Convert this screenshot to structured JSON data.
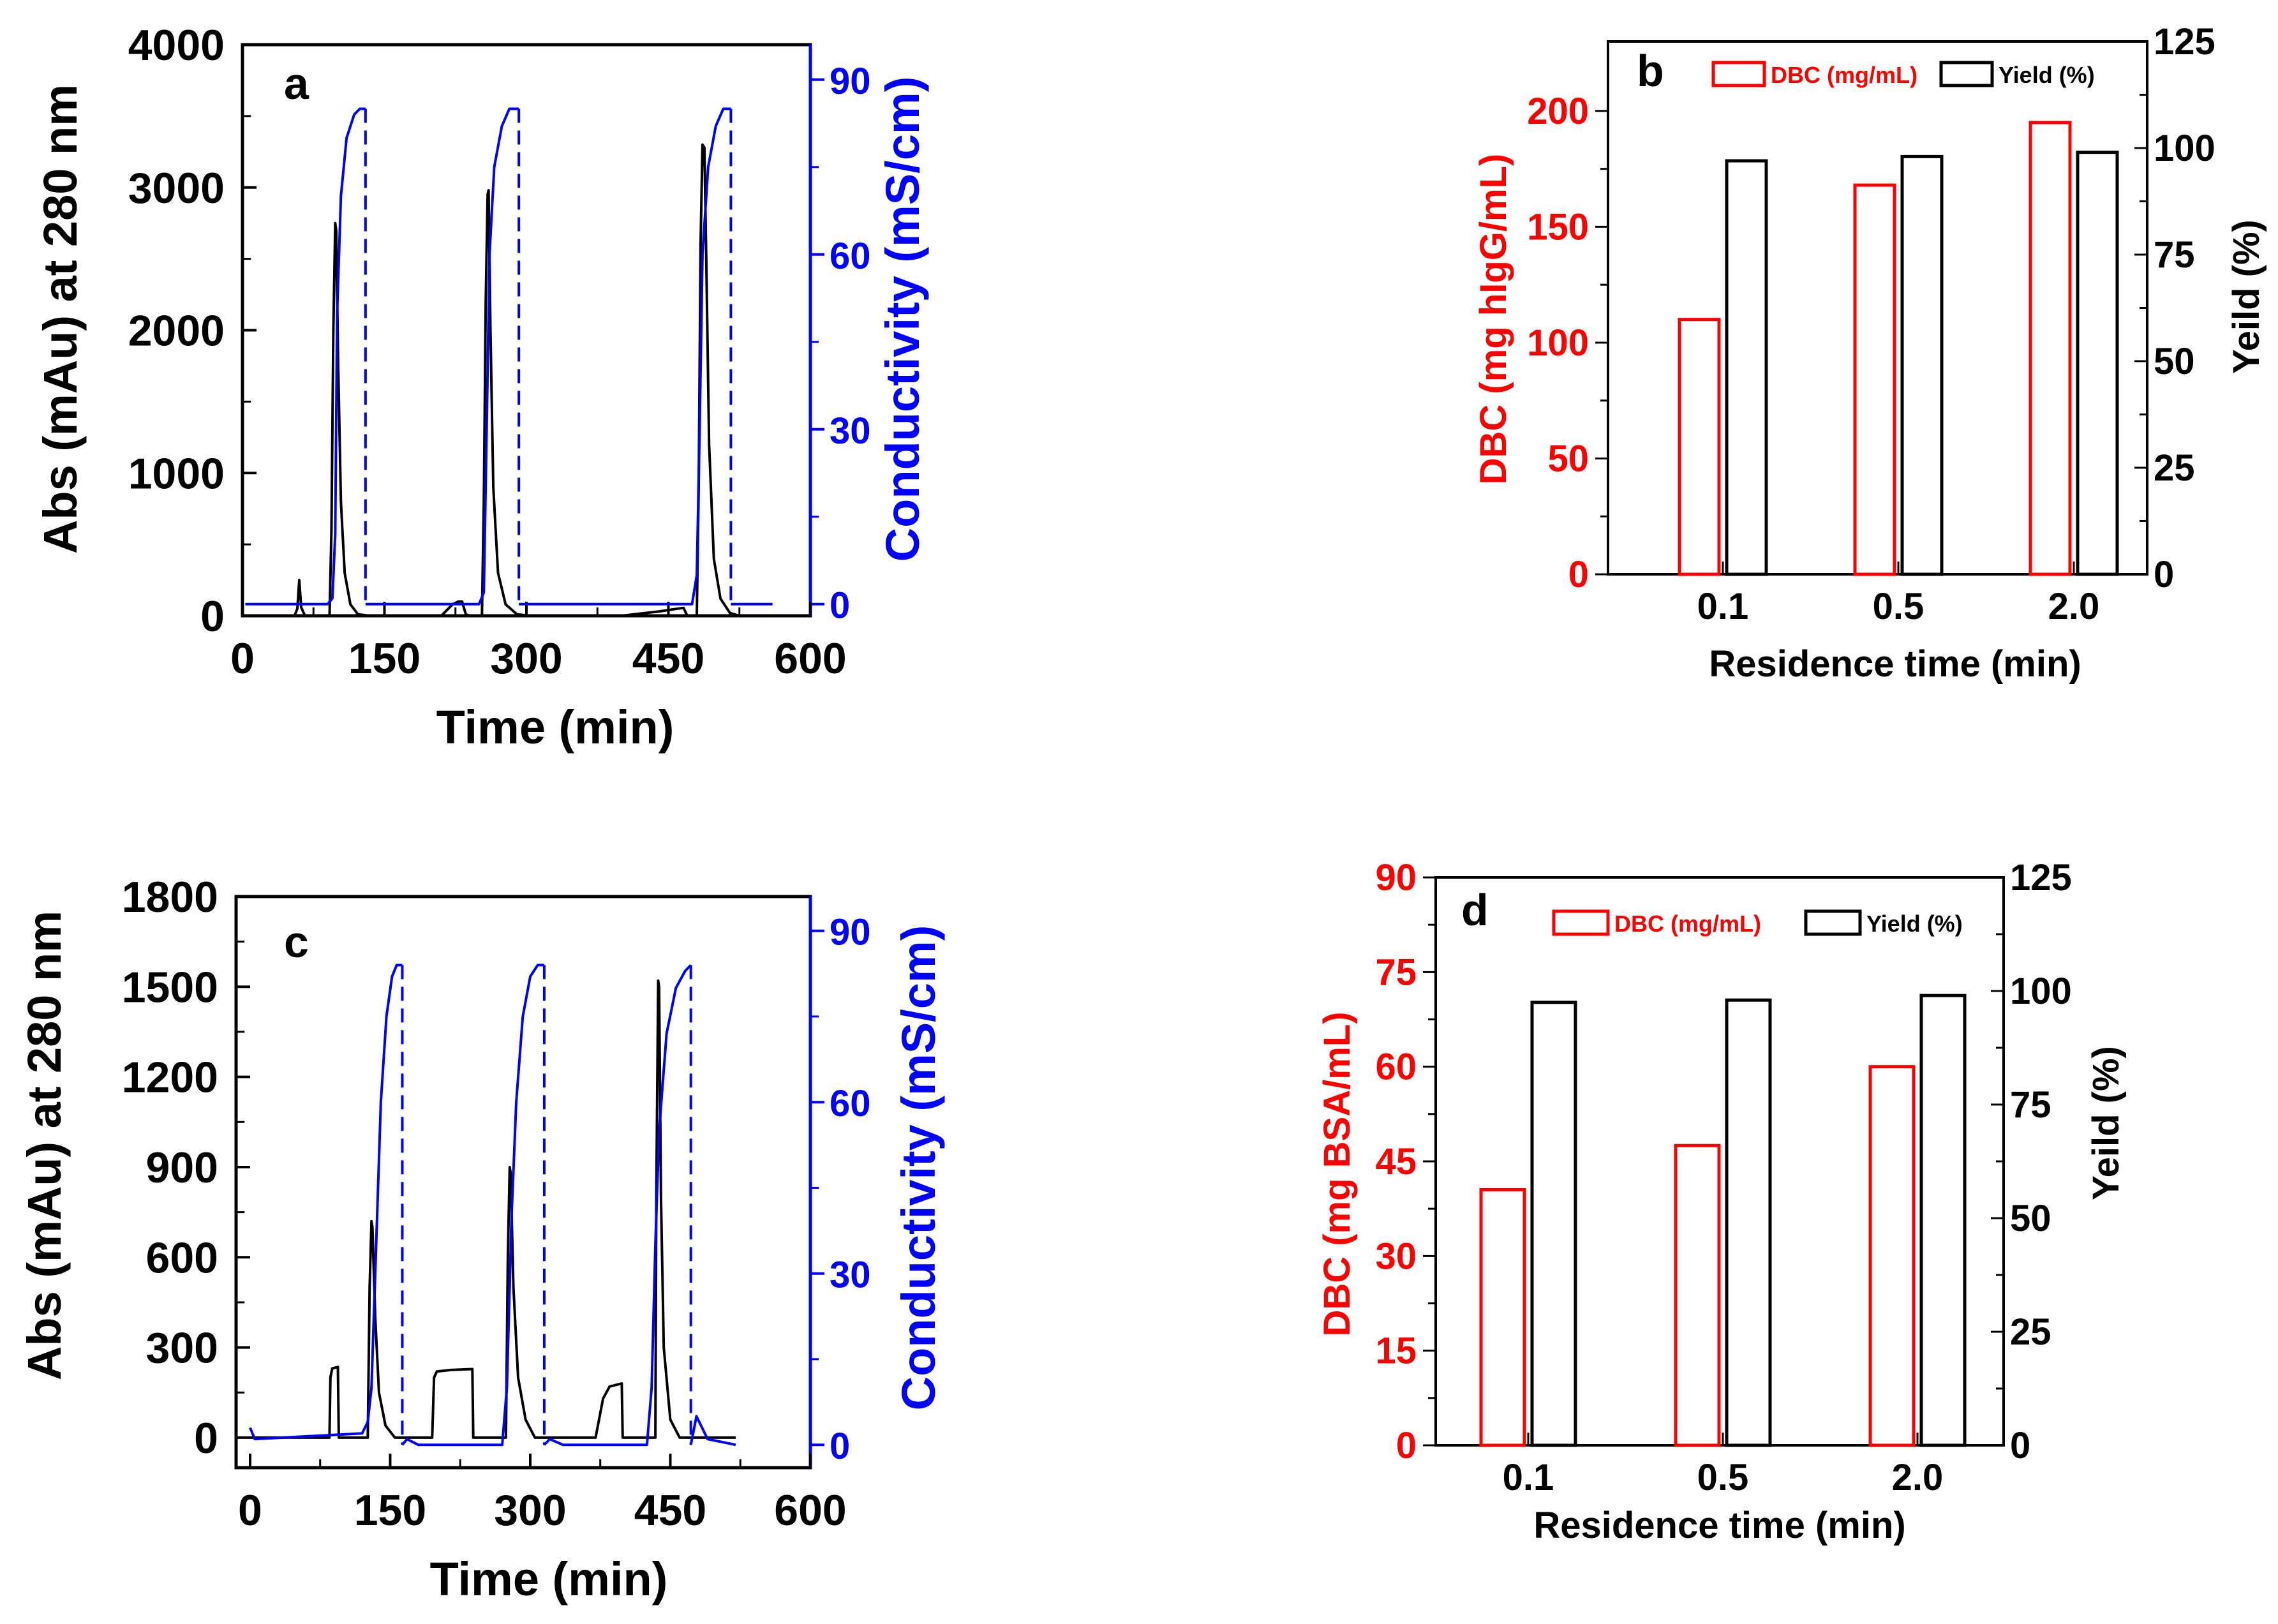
{
  "colors": {
    "absorbance": "#000000",
    "conductivity": "#0000ff",
    "dbc": "#ff0000",
    "yield": "#000000"
  },
  "chart_data": [
    {
      "id": "a",
      "type": "line",
      "panel_label": "a",
      "xlabel": "Time (min)",
      "ylabel": "Abs (mAu) at 280 nm",
      "y2label": "Conductivity (mS/cm)",
      "xlim": [
        0,
        600
      ],
      "ylim": [
        0,
        4000
      ],
      "y2lim": [
        -2,
        96
      ],
      "xticks": [
        0,
        150,
        300,
        450,
        600
      ],
      "yticks": [
        0,
        1000,
        2000,
        3000,
        4000
      ],
      "y2ticks": [
        0,
        30,
        60,
        90
      ],
      "series": [
        {
          "name": "Abs (mAu) at 280 nm",
          "axis": "left",
          "color": "#000000",
          "points": [
            [
              3,
              0
            ],
            [
              55,
              0
            ],
            [
              58,
              50
            ],
            [
              60,
              250
            ],
            [
              62,
              60
            ],
            [
              66,
              0
            ],
            [
              92,
              0
            ],
            [
              94,
              600
            ],
            [
              96,
              2000
            ],
            [
              98,
              2750
            ],
            [
              99,
              2700
            ],
            [
              101,
              1800
            ],
            [
              104,
              800
            ],
            [
              108,
              300
            ],
            [
              114,
              80
            ],
            [
              122,
              10
            ],
            [
              135,
              0
            ],
            [
              210,
              0
            ],
            [
              216,
              40
            ],
            [
              222,
              80
            ],
            [
              228,
              100
            ],
            [
              232,
              100
            ],
            [
              236,
              10
            ],
            [
              240,
              0
            ],
            [
              253,
              0
            ],
            [
              255,
              800
            ],
            [
              257,
              2200
            ],
            [
              259,
              2950
            ],
            [
              260,
              2980
            ],
            [
              262,
              2000
            ],
            [
              265,
              900
            ],
            [
              270,
              300
            ],
            [
              278,
              80
            ],
            [
              290,
              10
            ],
            [
              305,
              0
            ],
            [
              400,
              0
            ],
            [
              420,
              15
            ],
            [
              440,
              30
            ],
            [
              460,
              50
            ],
            [
              466,
              55
            ],
            [
              470,
              0
            ],
            [
              480,
              0
            ],
            [
              482,
              900
            ],
            [
              484,
              2600
            ],
            [
              486,
              3300
            ],
            [
              488,
              3280
            ],
            [
              490,
              2500
            ],
            [
              493,
              1200
            ],
            [
              498,
              400
            ],
            [
              505,
              120
            ],
            [
              515,
              20
            ],
            [
              525,
              0
            ],
            [
              560,
              0
            ]
          ]
        },
        {
          "name": "Conductivity (mS/cm)",
          "axis": "right",
          "color": "#0000ff",
          "points": [
            [
              3,
              0
            ],
            [
              90,
              0
            ],
            [
              95,
              1
            ],
            [
              98,
              12
            ],
            [
              100,
              50
            ],
            [
              104,
              70
            ],
            [
              110,
              80
            ],
            [
              118,
              84
            ],
            [
              124,
              85
            ],
            [
              130,
              85
            ],
            [
              130,
              0
            ],
            [
              250,
              0
            ],
            [
              255,
              2
            ],
            [
              258,
              30
            ],
            [
              261,
              60
            ],
            [
              266,
              75
            ],
            [
              274,
              82
            ],
            [
              282,
              85
            ],
            [
              292,
              85
            ],
            [
              292,
              0
            ],
            [
              475,
              0
            ],
            [
              480,
              5
            ],
            [
              483,
              30
            ],
            [
              486,
              60
            ],
            [
              492,
              75
            ],
            [
              500,
              82
            ],
            [
              508,
              85
            ],
            [
              516,
              85
            ],
            [
              516,
              0
            ],
            [
              560,
              0
            ]
          ]
        }
      ]
    },
    {
      "id": "b",
      "type": "bar",
      "panel_label": "b",
      "categories": [
        "0.1",
        "0.5",
        "2.0"
      ],
      "xlabel": "Residence time (min)",
      "ylabel": "DBC (mg hIgG/mL)",
      "y2label": "Yeild (%)",
      "ylim": [
        0,
        230
      ],
      "y2lim": [
        0,
        125
      ],
      "yticks": [
        0,
        50,
        100,
        150,
        200
      ],
      "y2ticks": [
        0,
        25,
        50,
        75,
        100,
        125
      ],
      "series": [
        {
          "name": "DBC (mg/mL)",
          "axis": "left",
          "color": "#ff0000",
          "values": [
            110,
            168,
            195
          ]
        },
        {
          "name": "Yield  (%)",
          "axis": "right",
          "color": "#000000",
          "values": [
            97,
            98,
            99
          ]
        }
      ],
      "legend": [
        "DBC (mg/mL)",
        "Yield  (%)"
      ]
    },
    {
      "id": "c",
      "type": "line",
      "panel_label": "c",
      "xlabel": "Time (min)",
      "ylabel": "Abs (mAu) at 280 nm",
      "y2label": "Conductivity (mS/cm)",
      "xlim": [
        -15,
        600
      ],
      "ylim": [
        -100,
        1800
      ],
      "y2lim": [
        -4,
        96
      ],
      "xticks": [
        0,
        150,
        300,
        450,
        600
      ],
      "yticks": [
        0,
        300,
        600,
        900,
        1200,
        1500,
        1800
      ],
      "y2ticks": [
        0,
        30,
        60,
        90
      ],
      "series": [
        {
          "name": "Abs (mAu) at 280 nm",
          "axis": "left",
          "color": "#000000",
          "points": [
            [
              0,
              0
            ],
            [
              85,
              0
            ],
            [
              86,
              200
            ],
            [
              88,
              230
            ],
            [
              94,
              235
            ],
            [
              95,
              0
            ],
            [
              126,
              0
            ],
            [
              128,
              500
            ],
            [
              130,
              720
            ],
            [
              131,
              700
            ],
            [
              134,
              400
            ],
            [
              138,
              150
            ],
            [
              145,
              40
            ],
            [
              155,
              0
            ],
            [
              195,
              0
            ],
            [
              197,
              200
            ],
            [
              200,
              220
            ],
            [
              215,
              225
            ],
            [
              238,
              228
            ],
            [
              239,
              0
            ],
            [
              274,
              0
            ],
            [
              276,
              600
            ],
            [
              278,
              900
            ],
            [
              279,
              880
            ],
            [
              282,
              500
            ],
            [
              287,
              200
            ],
            [
              295,
              60
            ],
            [
              305,
              0
            ],
            [
              370,
              0
            ],
            [
              378,
              130
            ],
            [
              385,
              170
            ],
            [
              398,
              180
            ],
            [
              399,
              0
            ],
            [
              434,
              0
            ],
            [
              435,
              800
            ],
            [
              437,
              1520
            ],
            [
              438,
              1500
            ],
            [
              440,
              800
            ],
            [
              443,
              300
            ],
            [
              450,
              60
            ],
            [
              460,
              0
            ],
            [
              520,
              0
            ]
          ]
        },
        {
          "name": "Conductivity (mS/cm)",
          "axis": "right",
          "color": "#0000ff",
          "points": [
            [
              0,
              3
            ],
            [
              5,
              1
            ],
            [
              120,
              2
            ],
            [
              126,
              4
            ],
            [
              130,
              10
            ],
            [
              135,
              35
            ],
            [
              140,
              60
            ],
            [
              146,
              75
            ],
            [
              152,
              82
            ],
            [
              157,
              84
            ],
            [
              163,
              84
            ],
            [
              163,
              0
            ],
            [
              168,
              1
            ],
            [
              180,
              0
            ],
            [
              270,
              0
            ],
            [
              275,
              10
            ],
            [
              280,
              40
            ],
            [
              285,
              60
            ],
            [
              292,
              75
            ],
            [
              300,
              82
            ],
            [
              308,
              84
            ],
            [
              315,
              84
            ],
            [
              315,
              0
            ],
            [
              321,
              1
            ],
            [
              335,
              0
            ],
            [
              425,
              0
            ],
            [
              430,
              10
            ],
            [
              434,
              35
            ],
            [
              438,
              55
            ],
            [
              446,
              72
            ],
            [
              456,
              80
            ],
            [
              466,
              83
            ],
            [
              472,
              84
            ],
            [
              472,
              0
            ],
            [
              478,
              5
            ],
            [
              490,
              1
            ],
            [
              520,
              0
            ]
          ]
        }
      ]
    },
    {
      "id": "d",
      "type": "bar",
      "panel_label": "d",
      "categories": [
        "0.1",
        "0.5",
        "2.0"
      ],
      "xlabel": "Residence time (min)",
      "ylabel": "DBC (mg BSA/mL)",
      "y2label": "Yeild (%)",
      "ylim": [
        0,
        90
      ],
      "y2lim": [
        0,
        125
      ],
      "yticks": [
        0,
        15,
        30,
        45,
        60,
        75,
        90
      ],
      "y2ticks": [
        0,
        25,
        50,
        75,
        100,
        125
      ],
      "series": [
        {
          "name": "DBC (mg/mL)",
          "axis": "left",
          "color": "#ff0000",
          "values": [
            40.5,
            47.5,
            60
          ]
        },
        {
          "name": "Yield (%)",
          "axis": "right",
          "color": "#000000",
          "values": [
            97.5,
            98,
            99
          ]
        }
      ],
      "legend": [
        "DBC (mg/mL)",
        "Yield (%)"
      ]
    }
  ]
}
